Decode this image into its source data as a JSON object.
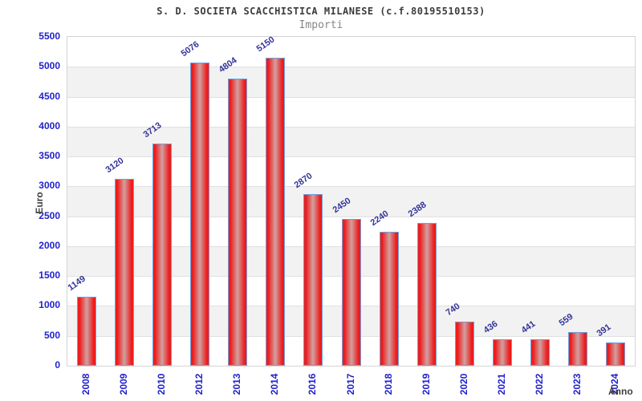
{
  "chart_data": {
    "type": "bar",
    "title": "S. D. SOCIETA SCACCHISTICA MILANESE (c.f.80195510153)",
    "subtitle": "Importi",
    "xlabel": "Anno",
    "ylabel": "Euro",
    "categories": [
      "2008",
      "2009",
      "2010",
      "2012",
      "2013",
      "2014",
      "2016",
      "2017",
      "2018",
      "2019",
      "2020",
      "2021",
      "2022",
      "2023",
      "2024"
    ],
    "values": [
      1149,
      3120,
      3713,
      5076,
      4804,
      5150,
      2870,
      2450,
      2240,
      2388,
      740,
      436,
      441,
      559,
      391
    ],
    "ylim": [
      0,
      5500
    ],
    "ytick_step": 500,
    "yticks": [
      0,
      500,
      1000,
      1500,
      2000,
      2500,
      3000,
      3500,
      4000,
      4500,
      5000,
      5500
    ],
    "grid": true,
    "legend_position": "none",
    "colors": {
      "tick_label": "#2222cc",
      "value_label": "#333399",
      "bar_edge": "#ed1c1c",
      "bar_center": "#d2a0a0",
      "bar_border": "#70a0dc",
      "band_light": "#ffffff",
      "band_dark": "#f2f2f2",
      "gridline": "#e0e0e0",
      "plot_border": "#d4d4d4",
      "title": "#3c3c3c",
      "subtitle": "#878787",
      "axis_title": "#3f3f3f"
    }
  }
}
